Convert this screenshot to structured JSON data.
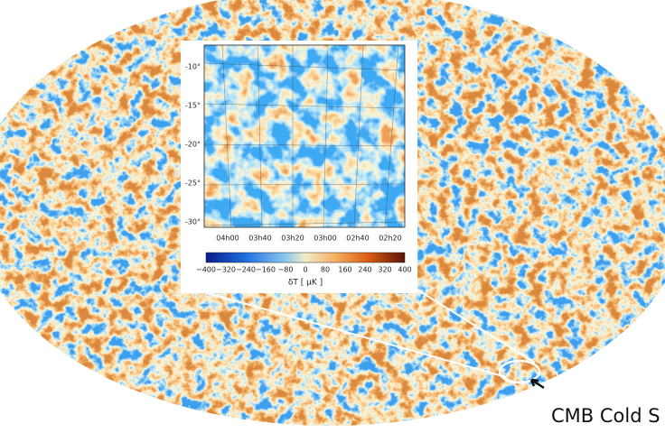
{
  "inset": {
    "y_ticks": [
      "-10°",
      "-15°",
      "-20°",
      "-25°",
      "-30°"
    ],
    "x_ticks": [
      "04h00",
      "03h40",
      "03h20",
      "03h00",
      "02h40",
      "02h20"
    ],
    "colorbar_ticks": [
      "−400",
      "−320",
      "−240",
      "−160",
      "−80",
      "0",
      "80",
      "160",
      "240",
      "320",
      "400"
    ],
    "colorbar_label": "δT [ μK ]"
  },
  "annotation": "CMB Cold S"
}
